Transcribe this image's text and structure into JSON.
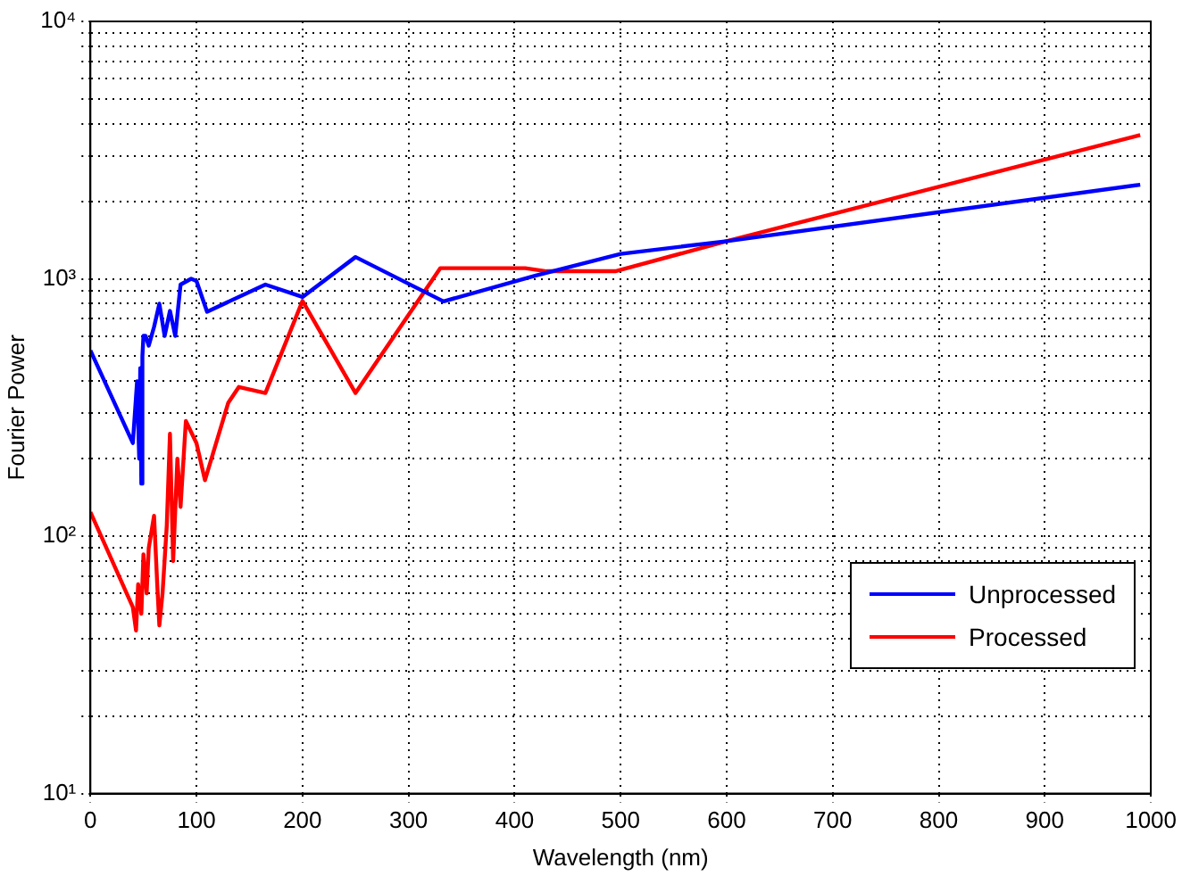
{
  "chart_data": {
    "type": "line",
    "xlabel": "Wavelength (nm)",
    "ylabel": "Fourier Power",
    "log": "y",
    "grid": true,
    "legend": "bottom right",
    "line_style": "solid",
    "marker": "none",
    "xlim": [
      0,
      1000
    ],
    "xticks": [
      0,
      100,
      200,
      300,
      400,
      500,
      600,
      700,
      800,
      900,
      1000
    ],
    "ylim": [
      10,
      10000
    ],
    "yticks": [
      {
        "value": 10,
        "label": "10¹"
      },
      {
        "value": 20,
        "label": null
      },
      {
        "value": 30,
        "label": null
      },
      {
        "value": 40,
        "label": null
      },
      {
        "value": 50,
        "label": null
      },
      {
        "value": 60,
        "label": null
      },
      {
        "value": 70,
        "label": null
      },
      {
        "value": 80,
        "label": null
      },
      {
        "value": 90,
        "label": null
      },
      {
        "value": 100,
        "label": "10²"
      },
      {
        "value": 200,
        "label": null
      },
      {
        "value": 300,
        "label": null
      },
      {
        "value": 400,
        "label": null
      },
      {
        "value": 500,
        "label": null
      },
      {
        "value": 600,
        "label": null
      },
      {
        "value": 700,
        "label": null
      },
      {
        "value": 800,
        "label": null
      },
      {
        "value": 900,
        "label": null
      },
      {
        "value": 1000,
        "label": "10³"
      },
      {
        "value": 2000,
        "label": null
      },
      {
        "value": 3000,
        "label": null
      },
      {
        "value": 4000,
        "label": null
      },
      {
        "value": 5000,
        "label": null
      },
      {
        "value": 6000,
        "label": null
      },
      {
        "value": 7000,
        "label": null
      },
      {
        "value": 8000,
        "label": null
      },
      {
        "value": 9000,
        "label": null
      },
      {
        "value": 10000,
        "label": "10⁴"
      }
    ],
    "series": [
      {
        "name": "Unprocessed",
        "color": "#0000ff",
        "x": [
          0,
          40,
          44,
          46,
          47,
          48,
          49,
          50,
          52,
          55,
          60,
          65,
          70,
          75,
          80,
          85,
          95,
          100,
          110,
          165,
          200,
          250,
          333,
          420,
          500,
          600,
          990
        ],
        "values": [
          527,
          230,
          400,
          200,
          450,
          160,
          500,
          600,
          600,
          550,
          650,
          800,
          600,
          750,
          600,
          950,
          1000,
          980,
          745,
          950,
          850,
          1215,
          817,
          1030,
          1250,
          1400,
          2320
        ]
      },
      {
        "name": "Processed",
        "color": "#ff0000",
        "x": [
          0,
          40,
          43,
          45,
          48,
          50,
          53,
          55,
          60,
          63,
          65,
          68,
          72,
          75,
          78,
          82,
          85,
          90,
          100,
          108,
          130,
          140,
          165,
          200,
          250,
          330,
          410,
          430,
          495,
          600,
          990
        ],
        "values": [
          124,
          53,
          43,
          65,
          50,
          85,
          60,
          90,
          120,
          65,
          45,
          60,
          110,
          250,
          80,
          200,
          130,
          280,
          230,
          165,
          330,
          380,
          360,
          820,
          360,
          1100,
          1100,
          1070,
          1070,
          1400,
          3620
        ]
      }
    ]
  }
}
